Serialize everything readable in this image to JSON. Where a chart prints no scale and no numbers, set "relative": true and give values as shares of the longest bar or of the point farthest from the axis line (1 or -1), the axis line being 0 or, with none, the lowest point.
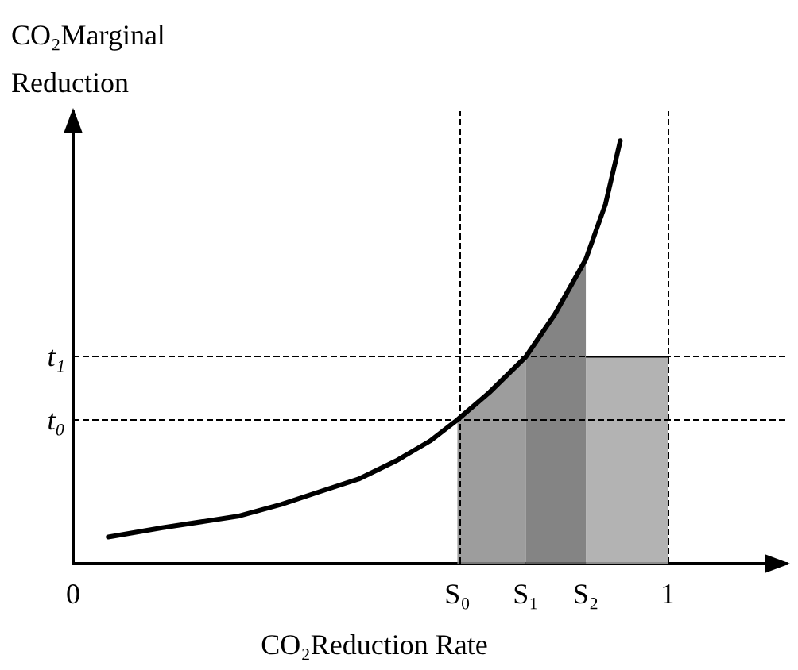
{
  "chart_data": {
    "type": "line",
    "relative": true,
    "xlabel": "CO₂Reduction Rate",
    "ylabel": "CO₂Marginal Reduction",
    "xlim": [
      0,
      1.2
    ],
    "xticks": [
      0,
      {
        "value": 0.646,
        "label": "S₀"
      },
      {
        "value": 0.761,
        "label": "S₁"
      },
      {
        "value": 0.862,
        "label": "S₂"
      },
      1
    ],
    "series": [
      {
        "type": "area",
        "color": "#8c8c8c",
        "x": [
          0.646,
          0.7,
          0.761
        ],
        "values": [
          0.34,
          0.405,
          0.489
        ]
      },
      {
        "type": "area",
        "color": "#6e6e6e",
        "x": [
          0.761,
          0.81,
          0.862
        ],
        "values": [
          0.489,
          0.59,
          0.72
        ]
      },
      {
        "type": "area",
        "color": "#a6a6a6",
        "x": [
          0.862,
          1
        ],
        "values": [
          0.489,
          0.489
        ]
      },
      {
        "color": "#000000",
        "x": [
          0.059,
          0.15,
          0.277,
          0.35,
          0.41,
          0.48,
          0.543,
          0.6,
          0.646,
          0.7,
          0.761,
          0.81,
          0.862,
          0.895,
          0.92
        ],
        "values": [
          0.063,
          0.085,
          0.112,
          0.14,
          0.168,
          0.2,
          0.243,
          0.29,
          0.34,
          0.405,
          0.489,
          0.59,
          0.72,
          0.85,
          1
        ]
      }
    ],
    "ref_lines": [
      {
        "axis": "y",
        "value": 0.34,
        "label": "t₀",
        "line_style": "dashed"
      },
      {
        "axis": "y",
        "value": 0.489,
        "label": "t₁",
        "line_style": "dashed"
      },
      {
        "axis": "x",
        "value": 0.646,
        "label": null,
        "line_style": "dashed"
      },
      {
        "axis": "x",
        "value": 1,
        "label": null,
        "line_style": "dashed"
      }
    ],
    "grid": false,
    "marker": "none",
    "line_style": "solid"
  }
}
